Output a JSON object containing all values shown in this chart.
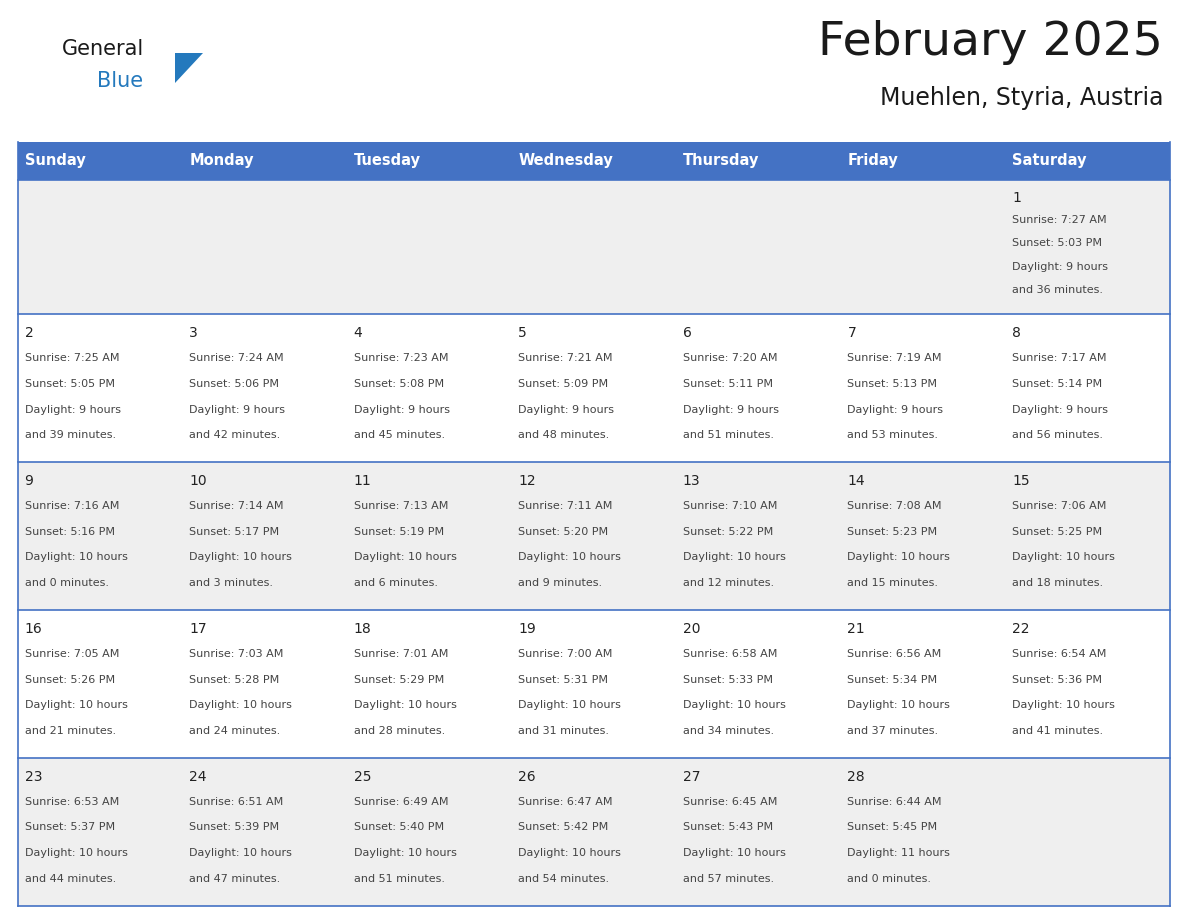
{
  "title": "February 2025",
  "subtitle": "Muehlen, Styria, Austria",
  "header_bg": "#4472C4",
  "header_text_color": "#FFFFFF",
  "day_names": [
    "Sunday",
    "Monday",
    "Tuesday",
    "Wednesday",
    "Thursday",
    "Friday",
    "Saturday"
  ],
  "row_bg_odd": "#EFEFEF",
  "row_bg_even": "#FFFFFF",
  "cell_border_color": "#4472C4",
  "text_color": "#333333",
  "days": [
    {
      "day": 1,
      "col": 6,
      "row": 0,
      "sunrise": "7:27 AM",
      "sunset": "5:03 PM",
      "daylight_line1": "Daylight: 9 hours",
      "daylight_line2": "and 36 minutes."
    },
    {
      "day": 2,
      "col": 0,
      "row": 1,
      "sunrise": "7:25 AM",
      "sunset": "5:05 PM",
      "daylight_line1": "Daylight: 9 hours",
      "daylight_line2": "and 39 minutes."
    },
    {
      "day": 3,
      "col": 1,
      "row": 1,
      "sunrise": "7:24 AM",
      "sunset": "5:06 PM",
      "daylight_line1": "Daylight: 9 hours",
      "daylight_line2": "and 42 minutes."
    },
    {
      "day": 4,
      "col": 2,
      "row": 1,
      "sunrise": "7:23 AM",
      "sunset": "5:08 PM",
      "daylight_line1": "Daylight: 9 hours",
      "daylight_line2": "and 45 minutes."
    },
    {
      "day": 5,
      "col": 3,
      "row": 1,
      "sunrise": "7:21 AM",
      "sunset": "5:09 PM",
      "daylight_line1": "Daylight: 9 hours",
      "daylight_line2": "and 48 minutes."
    },
    {
      "day": 6,
      "col": 4,
      "row": 1,
      "sunrise": "7:20 AM",
      "sunset": "5:11 PM",
      "daylight_line1": "Daylight: 9 hours",
      "daylight_line2": "and 51 minutes."
    },
    {
      "day": 7,
      "col": 5,
      "row": 1,
      "sunrise": "7:19 AM",
      "sunset": "5:13 PM",
      "daylight_line1": "Daylight: 9 hours",
      "daylight_line2": "and 53 minutes."
    },
    {
      "day": 8,
      "col": 6,
      "row": 1,
      "sunrise": "7:17 AM",
      "sunset": "5:14 PM",
      "daylight_line1": "Daylight: 9 hours",
      "daylight_line2": "and 56 minutes."
    },
    {
      "day": 9,
      "col": 0,
      "row": 2,
      "sunrise": "7:16 AM",
      "sunset": "5:16 PM",
      "daylight_line1": "Daylight: 10 hours",
      "daylight_line2": "and 0 minutes."
    },
    {
      "day": 10,
      "col": 1,
      "row": 2,
      "sunrise": "7:14 AM",
      "sunset": "5:17 PM",
      "daylight_line1": "Daylight: 10 hours",
      "daylight_line2": "and 3 minutes."
    },
    {
      "day": 11,
      "col": 2,
      "row": 2,
      "sunrise": "7:13 AM",
      "sunset": "5:19 PM",
      "daylight_line1": "Daylight: 10 hours",
      "daylight_line2": "and 6 minutes."
    },
    {
      "day": 12,
      "col": 3,
      "row": 2,
      "sunrise": "7:11 AM",
      "sunset": "5:20 PM",
      "daylight_line1": "Daylight: 10 hours",
      "daylight_line2": "and 9 minutes."
    },
    {
      "day": 13,
      "col": 4,
      "row": 2,
      "sunrise": "7:10 AM",
      "sunset": "5:22 PM",
      "daylight_line1": "Daylight: 10 hours",
      "daylight_line2": "and 12 minutes."
    },
    {
      "day": 14,
      "col": 5,
      "row": 2,
      "sunrise": "7:08 AM",
      "sunset": "5:23 PM",
      "daylight_line1": "Daylight: 10 hours",
      "daylight_line2": "and 15 minutes."
    },
    {
      "day": 15,
      "col": 6,
      "row": 2,
      "sunrise": "7:06 AM",
      "sunset": "5:25 PM",
      "daylight_line1": "Daylight: 10 hours",
      "daylight_line2": "and 18 minutes."
    },
    {
      "day": 16,
      "col": 0,
      "row": 3,
      "sunrise": "7:05 AM",
      "sunset": "5:26 PM",
      "daylight_line1": "Daylight: 10 hours",
      "daylight_line2": "and 21 minutes."
    },
    {
      "day": 17,
      "col": 1,
      "row": 3,
      "sunrise": "7:03 AM",
      "sunset": "5:28 PM",
      "daylight_line1": "Daylight: 10 hours",
      "daylight_line2": "and 24 minutes."
    },
    {
      "day": 18,
      "col": 2,
      "row": 3,
      "sunrise": "7:01 AM",
      "sunset": "5:29 PM",
      "daylight_line1": "Daylight: 10 hours",
      "daylight_line2": "and 28 minutes."
    },
    {
      "day": 19,
      "col": 3,
      "row": 3,
      "sunrise": "7:00 AM",
      "sunset": "5:31 PM",
      "daylight_line1": "Daylight: 10 hours",
      "daylight_line2": "and 31 minutes."
    },
    {
      "day": 20,
      "col": 4,
      "row": 3,
      "sunrise": "6:58 AM",
      "sunset": "5:33 PM",
      "daylight_line1": "Daylight: 10 hours",
      "daylight_line2": "and 34 minutes."
    },
    {
      "day": 21,
      "col": 5,
      "row": 3,
      "sunrise": "6:56 AM",
      "sunset": "5:34 PM",
      "daylight_line1": "Daylight: 10 hours",
      "daylight_line2": "and 37 minutes."
    },
    {
      "day": 22,
      "col": 6,
      "row": 3,
      "sunrise": "6:54 AM",
      "sunset": "5:36 PM",
      "daylight_line1": "Daylight: 10 hours",
      "daylight_line2": "and 41 minutes."
    },
    {
      "day": 23,
      "col": 0,
      "row": 4,
      "sunrise": "6:53 AM",
      "sunset": "5:37 PM",
      "daylight_line1": "Daylight: 10 hours",
      "daylight_line2": "and 44 minutes."
    },
    {
      "day": 24,
      "col": 1,
      "row": 4,
      "sunrise": "6:51 AM",
      "sunset": "5:39 PM",
      "daylight_line1": "Daylight: 10 hours",
      "daylight_line2": "and 47 minutes."
    },
    {
      "day": 25,
      "col": 2,
      "row": 4,
      "sunrise": "6:49 AM",
      "sunset": "5:40 PM",
      "daylight_line1": "Daylight: 10 hours",
      "daylight_line2": "and 51 minutes."
    },
    {
      "day": 26,
      "col": 3,
      "row": 4,
      "sunrise": "6:47 AM",
      "sunset": "5:42 PM",
      "daylight_line1": "Daylight: 10 hours",
      "daylight_line2": "and 54 minutes."
    },
    {
      "day": 27,
      "col": 4,
      "row": 4,
      "sunrise": "6:45 AM",
      "sunset": "5:43 PM",
      "daylight_line1": "Daylight: 10 hours",
      "daylight_line2": "and 57 minutes."
    },
    {
      "day": 28,
      "col": 5,
      "row": 4,
      "sunrise": "6:44 AM",
      "sunset": "5:45 PM",
      "daylight_line1": "Daylight: 11 hours",
      "daylight_line2": "and 0 minutes."
    }
  ],
  "logo_general_color": "#1a1a1a",
  "logo_blue_color": "#2479BD",
  "logo_triangle_color": "#2479BD",
  "figwidth": 11.88,
  "figheight": 9.18,
  "dpi": 100
}
